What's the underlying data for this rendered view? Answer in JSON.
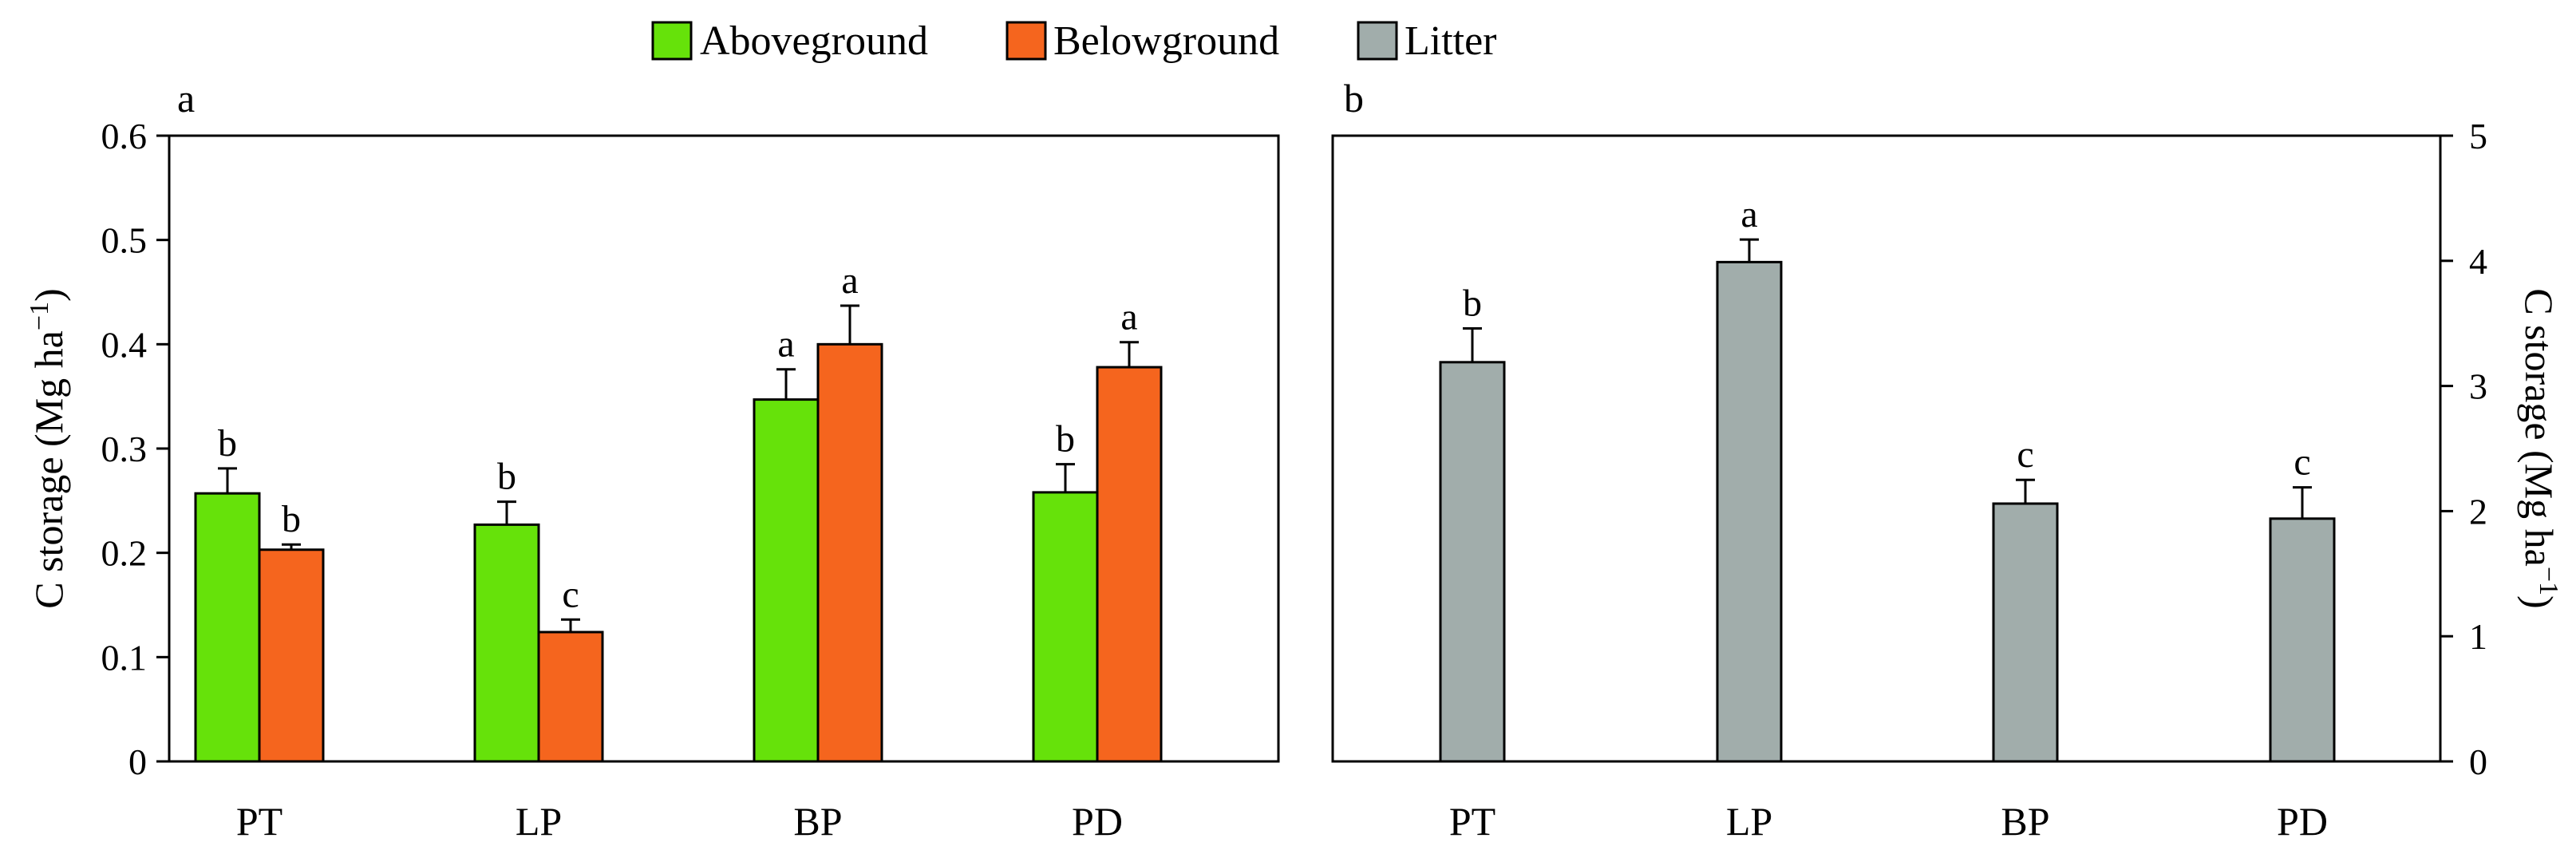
{
  "legend": {
    "items": [
      {
        "label": "Aboveground",
        "color": "#66e20a"
      },
      {
        "label": "Belowground",
        "color": "#f5651e"
      },
      {
        "label": "Litter",
        "color": "#a1adab"
      }
    ]
  },
  "chart_data": [
    {
      "type": "bar",
      "panel_label": "a",
      "categories": [
        "PT",
        "LP",
        "BP",
        "PD"
      ],
      "series": [
        {
          "name": "Aboveground",
          "color": "#66e20a",
          "values": [
            0.257,
            0.227,
            0.347,
            0.258
          ],
          "errors": [
            0.024,
            0.022,
            0.029,
            0.027
          ],
          "letters": [
            "b",
            "b",
            "a",
            "b"
          ]
        },
        {
          "name": "Belowground",
          "color": "#f5651e",
          "values": [
            0.203,
            0.124,
            0.4,
            0.378
          ],
          "errors": [
            0.005,
            0.012,
            0.037,
            0.024
          ],
          "letters": [
            "b",
            "c",
            "a",
            "a"
          ]
        }
      ],
      "ylabel": "C storage (Mg ha",
      "ylabel_sup": "−1",
      "ylabel_end": ")",
      "ylim": [
        0,
        0.6
      ],
      "yticks": [
        0,
        0.1,
        0.2,
        0.3,
        0.4,
        0.5,
        0.6
      ],
      "ytick_labels": [
        "0",
        "0.1",
        "0.2",
        "0.3",
        "0.4",
        "0.5",
        "0.6"
      ],
      "grid": false
    },
    {
      "type": "bar",
      "panel_label": "b",
      "categories": [
        "PT",
        "LP",
        "BP",
        "PD"
      ],
      "series": [
        {
          "name": "Litter",
          "color": "#a1adab",
          "values": [
            3.19,
            3.99,
            2.06,
            1.94
          ],
          "errors": [
            0.27,
            0.18,
            0.19,
            0.25
          ],
          "letters": [
            "b",
            "a",
            "c",
            "c"
          ]
        }
      ],
      "ylabel": "C storage (Mg ha",
      "ylabel_sup": "−1",
      "ylabel_end": ")",
      "ylim": [
        0,
        5
      ],
      "yticks": [
        0,
        1,
        2,
        3,
        4,
        5
      ],
      "ytick_labels": [
        "0",
        "1",
        "2",
        "3",
        "4",
        "5"
      ],
      "y_axis_side": "right",
      "grid": false
    }
  ]
}
